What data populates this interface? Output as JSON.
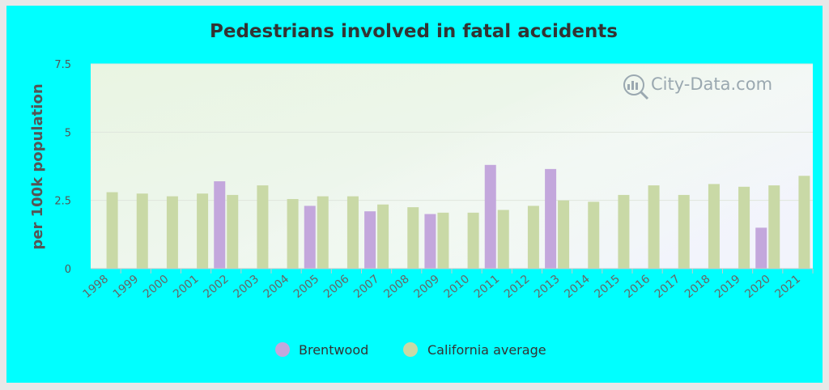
{
  "chart_data": {
    "type": "bar",
    "title": "Pedestrians involved in fatal accidents",
    "ylabel": "per 100k population",
    "xlabel": "",
    "ylim": [
      0,
      7.5
    ],
    "yticks": [
      "0",
      "2.5",
      "5",
      "7.5"
    ],
    "categories": [
      "1998",
      "1999",
      "2000",
      "2001",
      "2002",
      "2003",
      "2004",
      "2005",
      "2006",
      "2007",
      "2008",
      "2009",
      "2010",
      "2011",
      "2012",
      "2013",
      "2014",
      "2015",
      "2016",
      "2017",
      "2018",
      "2019",
      "2020",
      "2021"
    ],
    "series": [
      {
        "name": "Brentwood",
        "color": "#c3a7dc",
        "values": [
          null,
          null,
          null,
          null,
          3.2,
          null,
          null,
          2.3,
          null,
          2.1,
          null,
          2.0,
          null,
          3.8,
          null,
          3.65,
          null,
          null,
          null,
          null,
          null,
          null,
          1.5,
          null
        ]
      },
      {
        "name": "California average",
        "color": "#c9d9a6",
        "values": [
          2.8,
          2.75,
          2.65,
          2.75,
          2.7,
          3.05,
          2.55,
          2.65,
          2.65,
          2.35,
          2.25,
          2.05,
          2.05,
          2.15,
          2.3,
          2.5,
          2.45,
          2.7,
          3.05,
          2.7,
          3.1,
          3.0,
          3.05,
          3.4
        ]
      }
    ],
    "grid": true,
    "legend": "bottom"
  },
  "watermark": "City-Data.com"
}
